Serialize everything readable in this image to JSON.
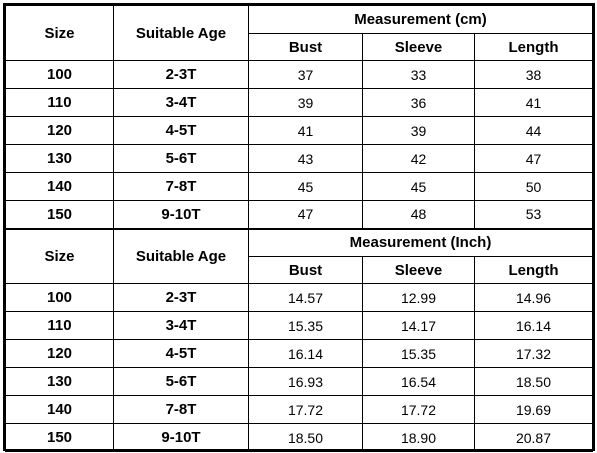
{
  "tables": [
    {
      "size_label": "Size",
      "age_label": "Suitable Age",
      "measure_title": "Measurement (cm)",
      "col_labels": [
        "Bust",
        "Sleeve",
        "Length"
      ],
      "rows": [
        {
          "size": "100",
          "age": "2-3T",
          "bust": "37",
          "sleeve": "33",
          "length": "38"
        },
        {
          "size": "110",
          "age": "3-4T",
          "bust": "39",
          "sleeve": "36",
          "length": "41"
        },
        {
          "size": "120",
          "age": "4-5T",
          "bust": "41",
          "sleeve": "39",
          "length": "44"
        },
        {
          "size": "130",
          "age": "5-6T",
          "bust": "43",
          "sleeve": "42",
          "length": "47"
        },
        {
          "size": "140",
          "age": "7-8T",
          "bust": "45",
          "sleeve": "45",
          "length": "50"
        },
        {
          "size": "150",
          "age": "9-10T",
          "bust": "47",
          "sleeve": "48",
          "length": "53"
        }
      ]
    },
    {
      "size_label": "Size",
      "age_label": "Suitable Age",
      "measure_title": "Measurement (Inch)",
      "col_labels": [
        "Bust",
        "Sleeve",
        "Length"
      ],
      "rows": [
        {
          "size": "100",
          "age": "2-3T",
          "bust": "14.57",
          "sleeve": "12.99",
          "length": "14.96"
        },
        {
          "size": "110",
          "age": "3-4T",
          "bust": "15.35",
          "sleeve": "14.17",
          "length": "16.14"
        },
        {
          "size": "120",
          "age": "4-5T",
          "bust": "16.14",
          "sleeve": "15.35",
          "length": "17.32"
        },
        {
          "size": "130",
          "age": "5-6T",
          "bust": "16.93",
          "sleeve": "16.54",
          "length": "18.50"
        },
        {
          "size": "140",
          "age": "7-8T",
          "bust": "17.72",
          "sleeve": "17.72",
          "length": "19.69"
        },
        {
          "size": "150",
          "age": "9-10T",
          "bust": "18.50",
          "sleeve": "18.90",
          "length": "20.87"
        }
      ]
    }
  ]
}
